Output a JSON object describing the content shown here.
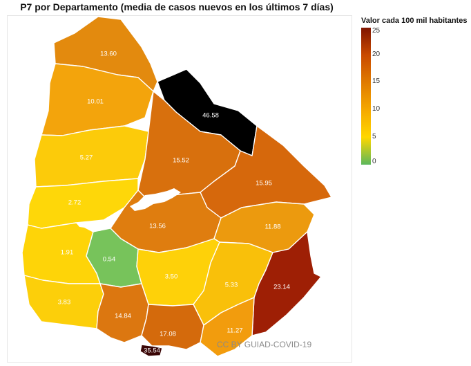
{
  "title": "P7 por Departamento (media de casos nuevos en los últimos 7 días)",
  "watermark": "CC BY GUIAD-COVID-19",
  "legend": {
    "title": "Valor cada 100 mil habitantes",
    "ticks": [
      "25",
      "20",
      "15",
      "10",
      "5",
      "0"
    ],
    "colors": [
      "#5cb85c",
      "#ffd700",
      "#f5a800",
      "#e07b00",
      "#c94a00",
      "#7f1500"
    ]
  },
  "departments": [
    {
      "id": "artigas",
      "value": "46.58",
      "color": "#000000"
    },
    {
      "id": "salto",
      "value": "13.60",
      "color": "#e38a0e"
    },
    {
      "id": "paysandu",
      "value": "10.01",
      "color": "#f3a40c"
    },
    {
      "id": "rio-negro",
      "value": "5.27",
      "color": "#fccb0a"
    },
    {
      "id": "soriano",
      "value": "2.72",
      "color": "#fed709"
    },
    {
      "id": "colonia",
      "value": "1.91",
      "color": "#fed408"
    },
    {
      "id": "san-jose",
      "value": "0.54",
      "color": "#77c35b"
    },
    {
      "id": "montevideo",
      "value": "35.54",
      "color": "#3a0606"
    },
    {
      "id": "canelones",
      "value": "17.08",
      "color": "#d46a0c"
    },
    {
      "id": "flores",
      "value": "3.83",
      "color": "#fccf0a"
    },
    {
      "id": "florida",
      "value": "14.84",
      "color": "#dc7710"
    },
    {
      "id": "durazno",
      "value": "13.56",
      "color": "#df7d0f"
    },
    {
      "id": "tacuarembo",
      "value": "15.52",
      "color": "#d8700d"
    },
    {
      "id": "rivera",
      "value": "46.58",
      "color": "#000000"
    },
    {
      "id": "cerro-largo",
      "value": "15.95",
      "color": "#d6680c"
    },
    {
      "id": "treinta-y-tres",
      "value": "11.88",
      "color": "#ec9a0e"
    },
    {
      "id": "lavalleja",
      "value": "5.33",
      "color": "#f9c00a"
    },
    {
      "id": "maldonado",
      "value": "11.27",
      "color": "#f29c0d"
    },
    {
      "id": "rocha",
      "value": "23.14",
      "color": "#9e1f05"
    },
    {
      "id": "flores-center",
      "value": "3.50",
      "color": "#fed109"
    }
  ]
}
